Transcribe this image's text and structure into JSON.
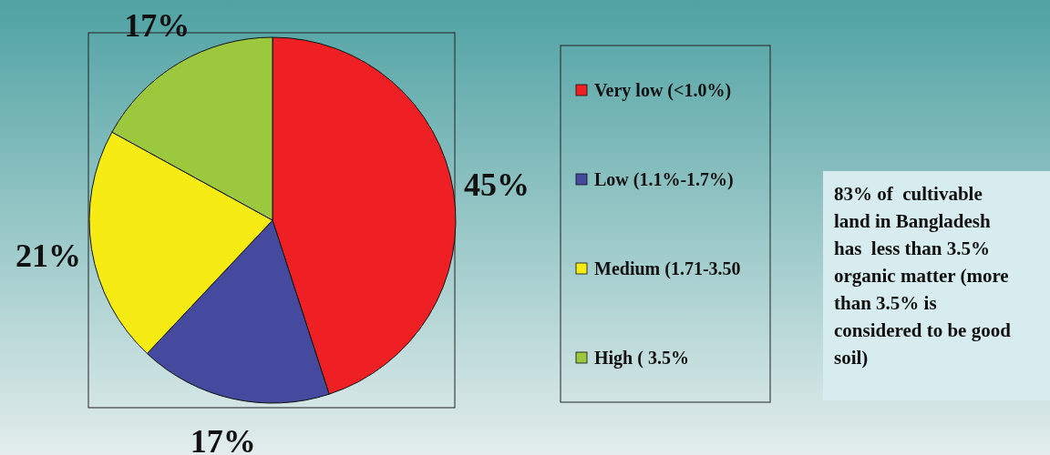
{
  "chart_data": {
    "type": "pie",
    "categories": [
      "Very low (<1.0%)",
      "Low (1.1%-1.7%)",
      "Medium (1.71-3.50",
      "High ( 3.5%"
    ],
    "values": [
      45,
      17,
      21,
      17
    ],
    "colors": [
      "#ee2024",
      "#464a9f",
      "#f6ec14",
      "#9bc83c"
    ],
    "value_labels": [
      "45%",
      "17%",
      "21%",
      "17%"
    ],
    "legend": "right",
    "annotations": [
      "83% of  cultivable land in Bangladesh has  less than 3.5% organic matter (more than 3.5% is considered to be good soil)"
    ]
  }
}
